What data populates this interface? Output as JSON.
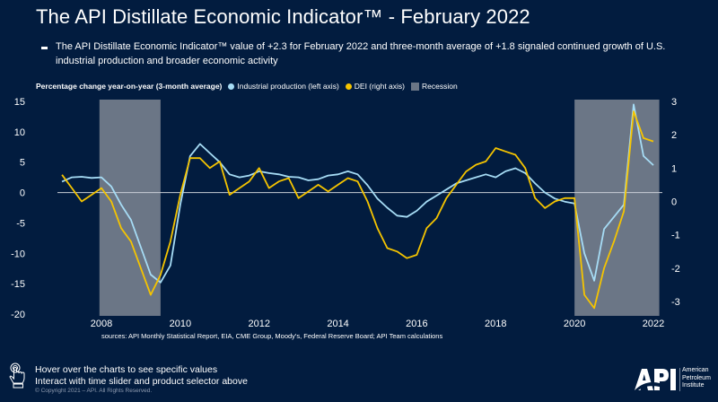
{
  "header": {
    "title": "The API Distillate Economic Indicator™ - February 2022",
    "subtitle": "The API Distillate Economic Indicator™ value of +2.3 for February 2022 and three-month average of +1.8 signaled continued growth of U.S. industrial production and broader economic activity"
  },
  "legend": {
    "lead": "Percentage change year-on-year (3-month average)",
    "items": [
      {
        "label": "Industrial production (left axis)",
        "color": "#a6dcf5"
      },
      {
        "label": "DEI (right axis)",
        "color": "#f5c400"
      },
      {
        "label": "Recession",
        "color": "#6b7686"
      }
    ]
  },
  "colors": {
    "background": "#021c3f",
    "industrial_production": "#a6dcf5",
    "dei": "#f5c400",
    "recession": "#6b7686",
    "zero_line": "#c9ced6"
  },
  "chart_data": {
    "type": "line",
    "title": "The API Distillate Economic Indicator™ - February 2022",
    "xlabel": "",
    "ylabel_left": "Percentage change year-on-year (3-month average)",
    "ylabel_right": "",
    "xlim": [
      2007.0,
      2022.2
    ],
    "ylim_left": [
      -20,
      15
    ],
    "ylim_right": [
      -3.4,
      3
    ],
    "x_ticks": [
      2008,
      2010,
      2012,
      2014,
      2016,
      2018,
      2020,
      2022
    ],
    "y_ticks_left": [
      15,
      10,
      5,
      0,
      -5,
      -10,
      -15,
      -20
    ],
    "y_ticks_right": [
      3,
      2,
      1,
      0,
      -1,
      -2,
      -3
    ],
    "grid": false,
    "legend_position": "top-left",
    "recessions": [
      [
        2007.95,
        2009.5
      ],
      [
        2020.0,
        2022.15
      ]
    ],
    "series": [
      {
        "name": "Industrial production (left axis)",
        "axis": "left",
        "x": [
          2007.0,
          2007.25,
          2007.5,
          2007.75,
          2008.0,
          2008.25,
          2008.5,
          2008.75,
          2009.0,
          2009.25,
          2009.5,
          2009.75,
          2010.0,
          2010.25,
          2010.5,
          2010.75,
          2011.0,
          2011.25,
          2011.5,
          2011.75,
          2012.0,
          2012.25,
          2012.5,
          2012.75,
          2013.0,
          2013.25,
          2013.5,
          2013.75,
          2014.0,
          2014.25,
          2014.5,
          2014.75,
          2015.0,
          2015.25,
          2015.5,
          2015.75,
          2016.0,
          2016.25,
          2016.5,
          2016.75,
          2017.0,
          2017.25,
          2017.5,
          2017.75,
          2018.0,
          2018.25,
          2018.5,
          2018.75,
          2019.0,
          2019.25,
          2019.5,
          2019.75,
          2020.0,
          2020.25,
          2020.5,
          2020.75,
          2021.0,
          2021.25,
          2021.5,
          2021.75,
          2022.0
        ],
        "y": [
          1.8,
          2.5,
          2.6,
          2.4,
          2.5,
          1.0,
          -2.0,
          -4.5,
          -9.0,
          -13.5,
          -14.8,
          -12.0,
          -2.0,
          6.0,
          8.0,
          6.5,
          5.0,
          3.0,
          2.5,
          2.8,
          3.5,
          3.2,
          3.0,
          2.6,
          2.5,
          2.0,
          2.2,
          2.8,
          3.0,
          3.5,
          3.0,
          1.2,
          -1.0,
          -2.5,
          -3.8,
          -4.0,
          -3.0,
          -1.5,
          -0.5,
          0.5,
          1.5,
          2.0,
          2.5,
          3.0,
          2.5,
          3.5,
          4.0,
          3.2,
          1.5,
          0.0,
          -1.0,
          -1.5,
          -1.8,
          -10.0,
          -14.5,
          -6.0,
          -4.0,
          -2.0,
          14.5,
          6.0,
          4.5
        ]
      },
      {
        "name": "DEI (right axis)",
        "axis": "right",
        "x": [
          2007.0,
          2007.25,
          2007.5,
          2007.75,
          2008.0,
          2008.25,
          2008.5,
          2008.75,
          2009.0,
          2009.25,
          2009.5,
          2009.75,
          2010.0,
          2010.25,
          2010.5,
          2010.75,
          2011.0,
          2011.25,
          2011.5,
          2011.75,
          2012.0,
          2012.25,
          2012.5,
          2012.75,
          2013.0,
          2013.25,
          2013.5,
          2013.75,
          2014.0,
          2014.25,
          2014.5,
          2014.75,
          2015.0,
          2015.25,
          2015.5,
          2015.75,
          2016.0,
          2016.25,
          2016.5,
          2016.75,
          2017.0,
          2017.25,
          2017.5,
          2017.75,
          2018.0,
          2018.25,
          2018.5,
          2018.75,
          2019.0,
          2019.25,
          2019.5,
          2019.75,
          2020.0,
          2020.25,
          2020.5,
          2020.75,
          2021.0,
          2021.25,
          2021.5,
          2021.75,
          2022.0
        ],
        "y": [
          0.8,
          0.4,
          0.0,
          0.2,
          0.4,
          0.0,
          -0.8,
          -1.2,
          -2.0,
          -2.8,
          -2.2,
          -1.2,
          0.2,
          1.3,
          1.3,
          1.0,
          1.2,
          0.2,
          0.4,
          0.6,
          1.0,
          0.4,
          0.6,
          0.7,
          0.1,
          0.3,
          0.5,
          0.3,
          0.5,
          0.7,
          0.6,
          0.0,
          -0.8,
          -1.4,
          -1.5,
          -1.7,
          -1.6,
          -0.8,
          -0.5,
          0.1,
          0.5,
          0.9,
          1.1,
          1.2,
          1.6,
          1.5,
          1.4,
          1.0,
          0.1,
          -0.2,
          0.0,
          0.1,
          0.1,
          -2.8,
          -3.2,
          -2.0,
          -1.2,
          -0.3,
          2.7,
          1.9,
          1.8
        ]
      }
    ],
    "sources": "sources: API Monthly Statistical Report, EIA, CME Group, Moody's, Federal Reserve Board; API Team calculations"
  },
  "footer": {
    "line1": "Hover over the charts to see specific values",
    "line2": "Interact with time slider and product selector above",
    "copyright": "© Copyright 2021 – API. All Rights Reserved.",
    "logo_text": [
      "American",
      "Petroleum",
      "Institute"
    ]
  }
}
